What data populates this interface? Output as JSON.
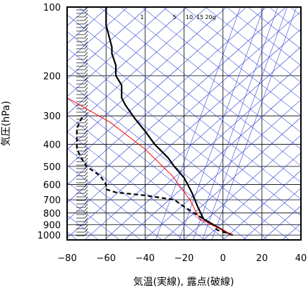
{
  "chart_data": {
    "type": "line",
    "title": "",
    "xlabel": "気温(実線), 露点(破線)",
    "ylabel": "気圧(hPa)",
    "xlim": [
      -80,
      40
    ],
    "ylim": [
      1050,
      100
    ],
    "y_scale": "log",
    "x_ticks": [
      "−80",
      "−60",
      "−40",
      "−20",
      "0",
      "20",
      "40"
    ],
    "x_tick_values": [
      -80,
      -60,
      -40,
      -20,
      0,
      20,
      40
    ],
    "y_ticks": [
      "100",
      "200",
      "300",
      "400",
      "500",
      "600",
      "700",
      "800",
      "900",
      "1000"
    ],
    "y_tick_values": [
      100,
      200,
      300,
      400,
      500,
      600,
      700,
      800,
      900,
      1000
    ],
    "mixing_ratio_labels": [
      "1",
      "5",
      "10",
      "15",
      "20g"
    ],
    "grid": true,
    "series": [
      {
        "style": "solid",
        "color": "#000000",
        "points": [
          [
            5,
            1000
          ],
          [
            2,
            975
          ],
          [
            -10,
            850
          ],
          [
            -13,
            750
          ],
          [
            -16,
            650
          ],
          [
            -20,
            560
          ],
          [
            -25,
            500
          ],
          [
            -28,
            460
          ],
          [
            -35,
            400
          ],
          [
            -40,
            350
          ],
          [
            -45,
            310
          ],
          [
            -50,
            270
          ],
          [
            -52,
            250
          ],
          [
            -52,
            220
          ],
          [
            -55,
            200
          ],
          [
            -55,
            180
          ],
          [
            -57,
            160
          ],
          [
            -57,
            150
          ],
          [
            -60,
            120
          ],
          [
            -60,
            100
          ]
        ]
      },
      {
        "style": "dashed",
        "color": "#000000",
        "points": [
          [
            5,
            1000
          ],
          [
            -3,
            950
          ],
          [
            -5,
            900
          ],
          [
            -15,
            800
          ],
          [
            -20,
            750
          ],
          [
            -25,
            700
          ],
          [
            -40,
            670
          ],
          [
            -55,
            650
          ],
          [
            -60,
            630
          ],
          [
            -60,
            600
          ],
          [
            -63,
            550
          ],
          [
            -70,
            500
          ],
          [
            -72,
            470
          ],
          [
            -75,
            420
          ],
          [
            -75,
            340
          ],
          [
            -72,
            300
          ]
        ]
      },
      {
        "style": "solid",
        "color": "#ff0000",
        "points": [
          [
            5,
            1000
          ],
          [
            -12,
            850
          ],
          [
            -17,
            700
          ],
          [
            -26,
            550
          ],
          [
            -40,
            420
          ],
          [
            -58,
            320
          ],
          [
            -80,
            250
          ]
        ]
      }
    ]
  }
}
